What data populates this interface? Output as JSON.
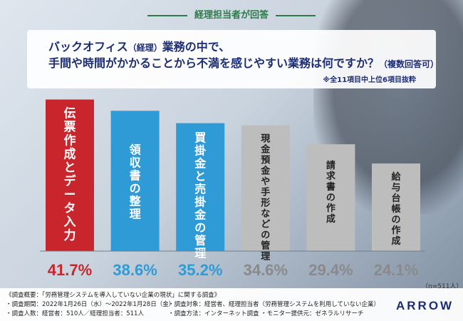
{
  "header": {
    "badge": "経理担当者が回答",
    "question_line1_a": "バックオフィス",
    "question_line1_b": "（経理）",
    "question_line1_c": "業務の中で、",
    "question_line2_a": "手間や時間がかかることから不満を感じやすい業務は何ですか？",
    "question_line2_b": "（複数回答可）",
    "note": "※全11項目中上位6項目抜粋"
  },
  "chart_data": {
    "type": "bar",
    "categories": [
      "伝票作成とデータ入力",
      "領収書の整理",
      "買掛金と売掛金の管理",
      "現金預金や手形などの管理",
      "請求書の作成",
      "給与台帳の作成"
    ],
    "values": [
      41.7,
      38.6,
      35.2,
      34.6,
      29.4,
      24.1
    ],
    "value_labels": [
      "41.7%",
      "38.6%",
      "35.2%",
      "34.6%",
      "29.4%",
      "24.1%"
    ],
    "unit": "%",
    "ylim": [
      0,
      42
    ],
    "colors": [
      "#c8262c",
      "#2f9bd6",
      "#2f9bd6",
      "#bdbdbd",
      "#bdbdbd",
      "#bdbdbd"
    ],
    "label_colors": [
      "#c8262c",
      "#2f9bd6",
      "#2f9bd6",
      "#8a8a8a",
      "#8a8a8a",
      "#8a8a8a"
    ],
    "n_label": "（n=511人）"
  },
  "footer": {
    "title": "《調査概要：「労務管理システムを導入していない企業の現状」に関する調査》",
    "period": "・調査期間：2022年1月26日（水）〜2022年1月28日（金）",
    "people": "・調査人数：経営者：510人／経理担当者：511人",
    "target": "・調査対象：経営者、経理担当者（労務管理システムを利用していない企業）",
    "method": "・調査方法：インターネット調査",
    "monitor": "・モニター提供元：ゼネラルリサーチ",
    "logo": "ARROW"
  }
}
